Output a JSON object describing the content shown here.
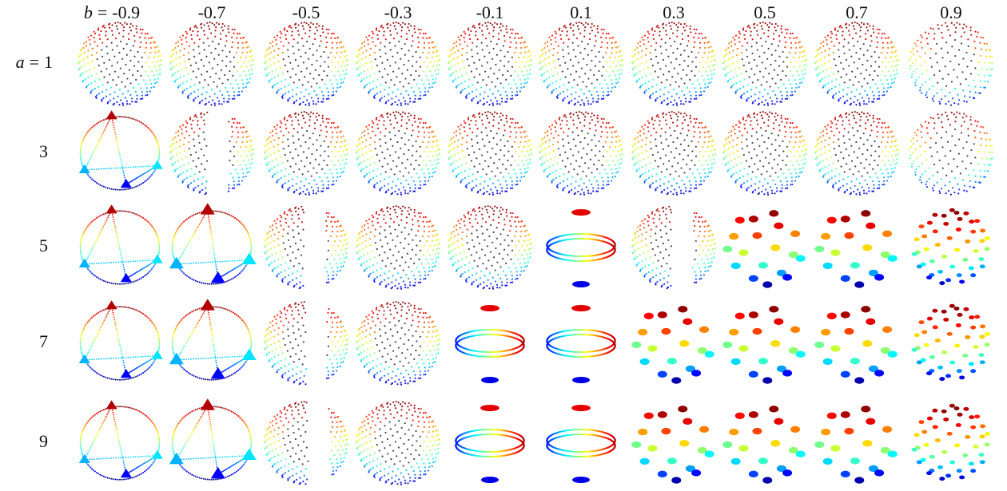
{
  "figure": {
    "column_variable": "b",
    "row_variable": "a",
    "sign": "=",
    "columns": [
      "-0.9",
      "-0.7",
      "-0.5",
      "-0.3",
      "-0.1",
      "0.1",
      "0.3",
      "0.5",
      "0.7",
      "0.9"
    ],
    "rows": [
      "1",
      "3",
      "5",
      "7",
      "9"
    ]
  }
}
